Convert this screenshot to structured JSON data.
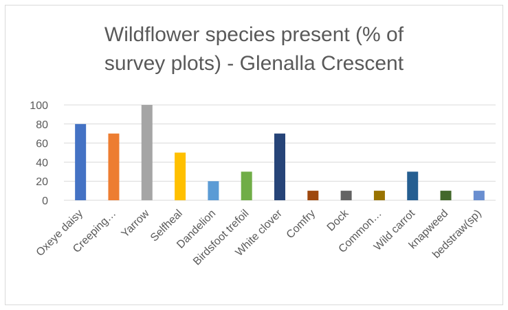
{
  "chart_data": {
    "type": "bar",
    "title_lines": [
      "Wildflower species present (% of",
      "survey plots) - Glenalla Crescent"
    ],
    "categories": [
      "Oxeye daisy",
      "Creeping…",
      "Yarrow",
      "Selfheal",
      "Dandelion",
      "Birdsfoot trefoil",
      "White clover",
      "Comfry",
      "Dock",
      "Common…",
      "Wild carrot",
      "knapweed",
      "bedstraw(sp)"
    ],
    "values": [
      80,
      70,
      100,
      50,
      20,
      30,
      70,
      10,
      10,
      10,
      30,
      10,
      10
    ],
    "colors": [
      "#4472c4",
      "#ed7d31",
      "#a5a5a5",
      "#ffc000",
      "#5b9bd5",
      "#70ad47",
      "#264478",
      "#9e480e",
      "#636363",
      "#997300",
      "#255e91",
      "#43682b",
      "#698ed0"
    ],
    "yticks": [
      "0",
      "20",
      "40",
      "60",
      "80",
      "100"
    ],
    "ylim": [
      0,
      100
    ],
    "xlabel": "",
    "ylabel": "",
    "grid": true,
    "legend": "none"
  }
}
